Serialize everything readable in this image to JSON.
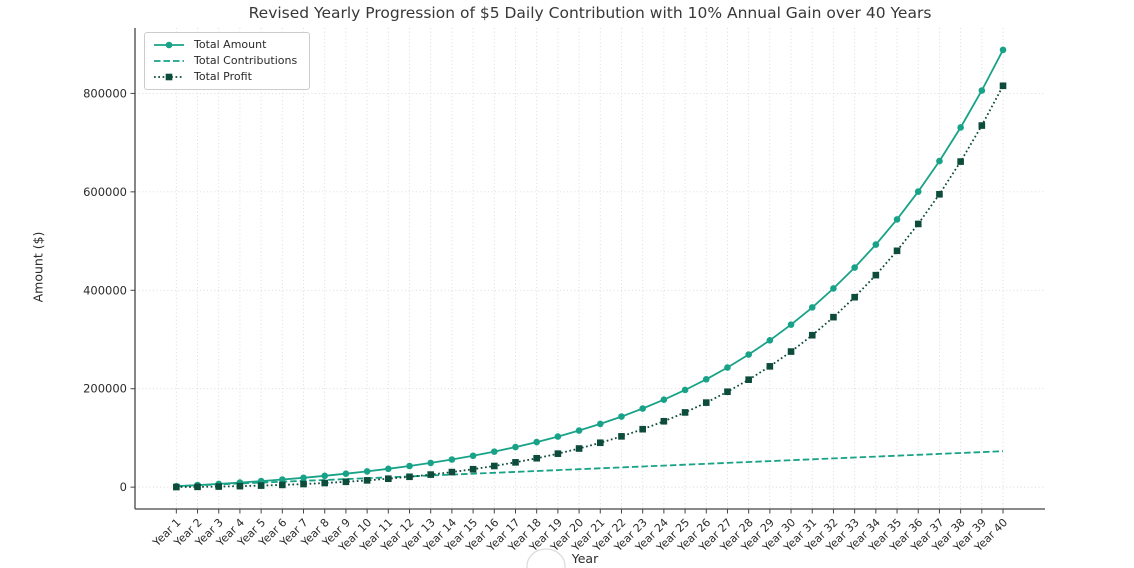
{
  "chart_data": {
    "type": "line",
    "title": "Revised Yearly Progression of $5 Daily Contribution with 10% Annual Gain over 40 Years",
    "xlabel": "Year",
    "ylabel": "Amount ($)",
    "categories": [
      "Year 1",
      "Year 2",
      "Year 3",
      "Year 4",
      "Year 5",
      "Year 6",
      "Year 7",
      "Year 8",
      "Year 9",
      "Year 10",
      "Year 11",
      "Year 12",
      "Year 13",
      "Year 14",
      "Year 15",
      "Year 16",
      "Year 17",
      "Year 18",
      "Year 19",
      "Year 20",
      "Year 21",
      "Year 22",
      "Year 23",
      "Year 24",
      "Year 25",
      "Year 26",
      "Year 27",
      "Year 28",
      "Year 29",
      "Year 30",
      "Year 31",
      "Year 32",
      "Year 33",
      "Year 34",
      "Year 35",
      "Year 36",
      "Year 37",
      "Year 38",
      "Year 39",
      "Year 40"
    ],
    "yticks": [
      0,
      200000,
      400000,
      600000,
      800000
    ],
    "ylim": [
      -44425,
      932930
    ],
    "xlim": [
      -0.95,
      41.98
    ],
    "grid": true,
    "grid_style": "dotted",
    "legend_position": "upper left",
    "colors": {
      "teal": "#18a287",
      "dark_green": "#0d4b3b",
      "grid": "#d8d8d8",
      "spine": "#454545",
      "tick_label": "#2b2b2b"
    },
    "series": [
      {
        "name": "Total Amount",
        "color": "#18a287",
        "line": "solid",
        "marker": "circle",
        "values": [
          2008,
          4216,
          6645,
          9317,
          12256,
          15489,
          19046,
          22958,
          27261,
          31994,
          37201,
          42929,
          49229,
          56160,
          63783,
          72169,
          81393,
          91540,
          102702,
          114980,
          128485,
          143341,
          159683,
          177658,
          197432,
          219182,
          243108,
          269426,
          298377,
          330222,
          365251,
          403784,
          446170,
          492794,
          544081,
          600497,
          662554,
          730817,
          805906,
          888505
        ]
      },
      {
        "name": "Total Contributions",
        "color": "#18a287",
        "line": "dashed",
        "marker": "none",
        "values": [
          1825,
          3650,
          5475,
          7300,
          9125,
          10950,
          12775,
          14600,
          16425,
          18250,
          20075,
          21900,
          23725,
          25550,
          27375,
          29200,
          31025,
          32850,
          34675,
          36500,
          38325,
          40150,
          41975,
          43800,
          45625,
          47450,
          49275,
          51100,
          52925,
          54750,
          56575,
          58400,
          60225,
          62050,
          63875,
          65700,
          67525,
          69350,
          71175,
          73000
        ]
      },
      {
        "name": "Total Profit",
        "color": "#0d4b3b",
        "line": "dotted",
        "marker": "square",
        "values": [
          183,
          566,
          1170,
          2017,
          3131,
          4539,
          6271,
          8358,
          10836,
          13744,
          17126,
          21029,
          25504,
          30610,
          36408,
          42969,
          50368,
          58690,
          68027,
          78480,
          90160,
          103191,
          117708,
          133858,
          151807,
          171732,
          193833,
          218326,
          245452,
          275472,
          308676,
          345384,
          385945,
          430744,
          480206,
          534797,
          595029,
          661467,
          734731,
          815505
        ]
      }
    ]
  }
}
